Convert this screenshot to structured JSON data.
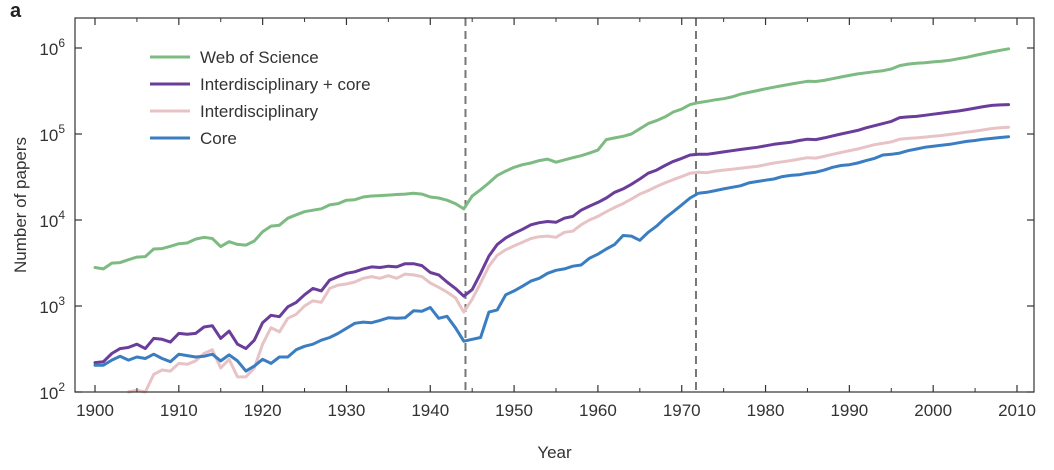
{
  "panel_label": "a",
  "chart_data": {
    "type": "line",
    "title": "",
    "xlabel": "Year",
    "ylabel": "Number of papers",
    "xlim": [
      1900,
      2010
    ],
    "ylim": [
      100,
      1000000
    ],
    "yscale": "log",
    "xticks": [
      1900,
      1910,
      1920,
      1930,
      1940,
      1950,
      1960,
      1970,
      1980,
      1990,
      2000,
      2010
    ],
    "yticks": [
      {
        "value": 100,
        "base": "10",
        "exp": "2"
      },
      {
        "value": 1000,
        "base": "10",
        "exp": "3"
      },
      {
        "value": 10000,
        "base": "10",
        "exp": "4"
      },
      {
        "value": 100000,
        "base": "10",
        "exp": "5"
      },
      {
        "value": 1000000,
        "base": "10",
        "exp": "6"
      }
    ],
    "vlines": [
      1944.2,
      1971.7
    ],
    "legend_position": "top-left",
    "series": [
      {
        "name": "Web of Science",
        "color": "#7dbb82",
        "x": [
          1900,
          1901,
          1902,
          1903,
          1904,
          1905,
          1906,
          1907,
          1908,
          1909,
          1910,
          1911,
          1912,
          1913,
          1914,
          1915,
          1916,
          1917,
          1918,
          1919,
          1920,
          1921,
          1922,
          1923,
          1924,
          1925,
          1926,
          1927,
          1928,
          1929,
          1930,
          1931,
          1932,
          1933,
          1934,
          1935,
          1936,
          1937,
          1938,
          1939,
          1940,
          1941,
          1942,
          1943,
          1944,
          1945,
          1946,
          1947,
          1948,
          1949,
          1950,
          1951,
          1952,
          1953,
          1954,
          1955,
          1956,
          1957,
          1958,
          1959,
          1960,
          1961,
          1962,
          1963,
          1964,
          1965,
          1966,
          1967,
          1968,
          1969,
          1970,
          1971,
          1972,
          1973,
          1974,
          1975,
          1976,
          1977,
          1978,
          1979,
          1980,
          1981,
          1982,
          1983,
          1984,
          1985,
          1986,
          1987,
          1988,
          1989,
          1990,
          1991,
          1992,
          1993,
          1994,
          1995,
          1996,
          1997,
          1998,
          1999,
          2000,
          2001,
          2002,
          2003,
          2004,
          2005,
          2006,
          2007,
          2008,
          2009
        ],
        "values": [
          2800,
          2700,
          3150,
          3200,
          3450,
          3700,
          3750,
          4600,
          4650,
          4950,
          5300,
          5400,
          6000,
          6300,
          6100,
          4900,
          5600,
          5200,
          5100,
          5700,
          7300,
          8500,
          8700,
          10500,
          11500,
          12500,
          13000,
          13500,
          15000,
          15500,
          17000,
          17200,
          18500,
          19000,
          19200,
          19500,
          19800,
          20000,
          20500,
          20000,
          18500,
          18000,
          17000,
          15500,
          13500,
          19000,
          22500,
          27000,
          33000,
          37000,
          41000,
          44000,
          46000,
          49000,
          51000,
          47000,
          50000,
          53000,
          56000,
          60000,
          65000,
          86000,
          90000,
          94000,
          100000,
          115000,
          132000,
          143000,
          158000,
          180000,
          195000,
          220000,
          232000,
          240000,
          250000,
          257000,
          270000,
          290000,
          305000,
          320000,
          335000,
          350000,
          365000,
          380000,
          395000,
          410000,
          408000,
          420000,
          440000,
          460000,
          480000,
          500000,
          515000,
          530000,
          545000,
          570000,
          625000,
          650000,
          665000,
          675000,
          690000,
          700000,
          720000,
          750000,
          780000,
          820000,
          860000,
          900000,
          940000,
          980000
        ]
      },
      {
        "name": "Interdisciplinary + core",
        "color": "#6a3d9a",
        "x": [
          1900,
          1901,
          1902,
          1903,
          1904,
          1905,
          1906,
          1907,
          1908,
          1909,
          1910,
          1911,
          1912,
          1913,
          1914,
          1915,
          1916,
          1917,
          1918,
          1919,
          1920,
          1921,
          1922,
          1923,
          1924,
          1925,
          1926,
          1927,
          1928,
          1929,
          1930,
          1931,
          1932,
          1933,
          1934,
          1935,
          1936,
          1937,
          1938,
          1939,
          1940,
          1941,
          1942,
          1943,
          1944,
          1945,
          1946,
          1947,
          1948,
          1949,
          1950,
          1951,
          1952,
          1953,
          1954,
          1955,
          1956,
          1957,
          1958,
          1959,
          1960,
          1961,
          1962,
          1963,
          1964,
          1965,
          1966,
          1967,
          1968,
          1969,
          1970,
          1971,
          1972,
          1973,
          1974,
          1975,
          1976,
          1977,
          1978,
          1979,
          1980,
          1981,
          1982,
          1983,
          1984,
          1985,
          1986,
          1987,
          1988,
          1989,
          1990,
          1991,
          1992,
          1993,
          1994,
          1995,
          1996,
          1997,
          1998,
          1999,
          2000,
          2001,
          2002,
          2003,
          2004,
          2005,
          2006,
          2007,
          2008,
          2009
        ],
        "values": [
          220,
          225,
          280,
          320,
          330,
          360,
          320,
          420,
          410,
          380,
          480,
          470,
          480,
          570,
          590,
          420,
          510,
          360,
          320,
          400,
          640,
          780,
          750,
          980,
          1100,
          1350,
          1600,
          1500,
          2000,
          2200,
          2400,
          2500,
          2700,
          2850,
          2800,
          2900,
          2850,
          3100,
          3100,
          2950,
          2450,
          2300,
          1900,
          1600,
          1300,
          1550,
          2400,
          3800,
          5200,
          6200,
          7000,
          7800,
          8800,
          9300,
          9600,
          9400,
          10500,
          11000,
          13000,
          14500,
          16000,
          18000,
          21000,
          23000,
          26000,
          30000,
          35000,
          38000,
          43000,
          48000,
          52000,
          57000,
          58000,
          58000,
          60000,
          62000,
          64000,
          66000,
          68000,
          70000,
          73000,
          76000,
          78000,
          80000,
          84000,
          87000,
          86000,
          90000,
          95000,
          100000,
          105000,
          110000,
          118000,
          125000,
          132000,
          140000,
          155000,
          158000,
          160000,
          165000,
          170000,
          175000,
          180000,
          185000,
          192000,
          200000,
          208000,
          215000,
          218000,
          220000
        ]
      },
      {
        "name": "Interdisciplinary",
        "color": "#e8c3c6",
        "x": [
          1904,
          1905,
          1906,
          1907,
          1908,
          1909,
          1910,
          1911,
          1912,
          1913,
          1914,
          1915,
          1916,
          1917,
          1918,
          1919,
          1920,
          1921,
          1922,
          1923,
          1924,
          1925,
          1926,
          1927,
          1928,
          1929,
          1930,
          1931,
          1932,
          1933,
          1934,
          1935,
          1936,
          1937,
          1938,
          1939,
          1940,
          1941,
          1942,
          1943,
          1944,
          1945,
          1946,
          1947,
          1948,
          1949,
          1950,
          1951,
          1952,
          1953,
          1954,
          1955,
          1956,
          1957,
          1958,
          1959,
          1960,
          1961,
          1962,
          1963,
          1964,
          1965,
          1966,
          1967,
          1968,
          1969,
          1970,
          1971,
          1972,
          1973,
          1974,
          1975,
          1976,
          1977,
          1978,
          1979,
          1980,
          1981,
          1982,
          1983,
          1984,
          1985,
          1986,
          1987,
          1988,
          1989,
          1990,
          1991,
          1992,
          1993,
          1994,
          1995,
          1996,
          1997,
          1998,
          1999,
          2000,
          2001,
          2002,
          2003,
          2004,
          2005,
          2006,
          2007,
          2008,
          2009
        ],
        "values": [
          100,
          105,
          95,
          160,
          180,
          175,
          215,
          210,
          230,
          280,
          310,
          190,
          240,
          150,
          150,
          190,
          360,
          560,
          500,
          720,
          800,
          1000,
          1150,
          1100,
          1600,
          1750,
          1800,
          1900,
          2100,
          2200,
          2100,
          2250,
          2100,
          2350,
          2300,
          2200,
          1850,
          1650,
          1450,
          1250,
          850,
          1200,
          1850,
          2900,
          3900,
          4500,
          5000,
          5500,
          6100,
          6400,
          6500,
          6300,
          7200,
          7400,
          8800,
          10000,
          11000,
          12500,
          14000,
          15500,
          17500,
          20000,
          22000,
          24500,
          27000,
          29500,
          32000,
          35000,
          36000,
          35500,
          37000,
          38000,
          39000,
          40000,
          41000,
          42000,
          44000,
          46000,
          47500,
          49000,
          51000,
          53000,
          52500,
          55000,
          58000,
          61000,
          64000,
          67000,
          71000,
          75000,
          78000,
          81000,
          87000,
          89000,
          90000,
          92000,
          94000,
          96000,
          99000,
          102000,
          105000,
          108000,
          112000,
          116000,
          118000,
          120000
        ]
      },
      {
        "name": "Core",
        "color": "#3a7dc1",
        "x": [
          1900,
          1901,
          1902,
          1903,
          1904,
          1905,
          1906,
          1907,
          1908,
          1909,
          1910,
          1911,
          1912,
          1913,
          1914,
          1915,
          1916,
          1917,
          1918,
          1919,
          1920,
          1921,
          1922,
          1923,
          1924,
          1925,
          1926,
          1927,
          1928,
          1929,
          1930,
          1931,
          1932,
          1933,
          1934,
          1935,
          1936,
          1937,
          1938,
          1939,
          1940,
          1941,
          1942,
          1943,
          1944,
          1945,
          1946,
          1947,
          1948,
          1949,
          1950,
          1951,
          1952,
          1953,
          1954,
          1955,
          1956,
          1957,
          1958,
          1959,
          1960,
          1961,
          1962,
          1963,
          1964,
          1965,
          1966,
          1967,
          1968,
          1969,
          1970,
          1971,
          1972,
          1973,
          1974,
          1975,
          1976,
          1977,
          1978,
          1979,
          1980,
          1981,
          1982,
          1983,
          1984,
          1985,
          1986,
          1987,
          1988,
          1989,
          1990,
          1991,
          1992,
          1993,
          1994,
          1995,
          1996,
          1997,
          1998,
          1999,
          2000,
          2001,
          2002,
          2003,
          2004,
          2005,
          2006,
          2007,
          2008,
          2009
        ],
        "values": [
          205,
          205,
          235,
          260,
          235,
          255,
          245,
          275,
          245,
          225,
          275,
          265,
          255,
          260,
          275,
          230,
          270,
          230,
          175,
          200,
          240,
          215,
          255,
          255,
          310,
          340,
          360,
          400,
          430,
          480,
          550,
          630,
          650,
          640,
          680,
          730,
          720,
          730,
          880,
          870,
          960,
          720,
          760,
          560,
          390,
          410,
          430,
          850,
          900,
          1350,
          1500,
          1700,
          1950,
          2100,
          2400,
          2600,
          2700,
          2900,
          3000,
          3600,
          4000,
          4600,
          5200,
          6600,
          6500,
          5800,
          7200,
          8500,
          10500,
          12500,
          15000,
          18000,
          20500,
          21000,
          22000,
          23000,
          24000,
          25000,
          27000,
          28000,
          29000,
          30000,
          32000,
          33000,
          33500,
          35000,
          36000,
          38000,
          41000,
          43000,
          44000,
          46000,
          49000,
          52000,
          57000,
          58000,
          60000,
          64000,
          67000,
          70000,
          72000,
          74000,
          76000,
          79000,
          82000,
          84000,
          87000,
          89000,
          91000,
          93000
        ]
      }
    ]
  }
}
